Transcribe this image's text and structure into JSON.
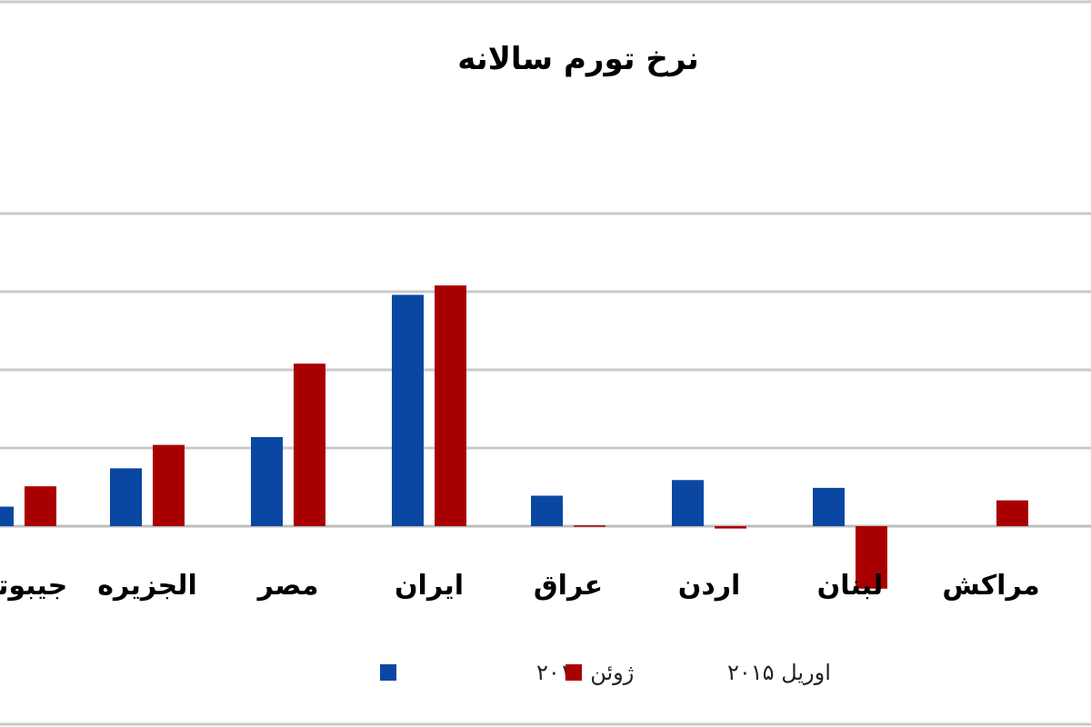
{
  "chart_data": {
    "type": "bar",
    "title": "نرخ تورم سالانه",
    "categories": [
      "جیبوتی",
      "الجزیره",
      "مصر",
      "ایران",
      "عراق",
      "اردن",
      "لبنان",
      "مراکش"
    ],
    "series": [
      {
        "name": "ژوئن ۲۰۱۴",
        "color": "#0a47a3",
        "values": [
          2.5,
          7.4,
          11.4,
          29.6,
          3.9,
          5.9,
          4.9,
          null
        ]
      },
      {
        "name": "اوریل ۲۰۱۵",
        "color": "#a80000",
        "values": [
          5.1,
          10.4,
          20.8,
          30.8,
          0.1,
          -0.3,
          -8.0,
          3.3
        ]
      }
    ],
    "ylim": [
      -10,
      40
    ],
    "grid": true,
    "legend_position": "bottom",
    "xlabel": "",
    "ylabel": ""
  }
}
